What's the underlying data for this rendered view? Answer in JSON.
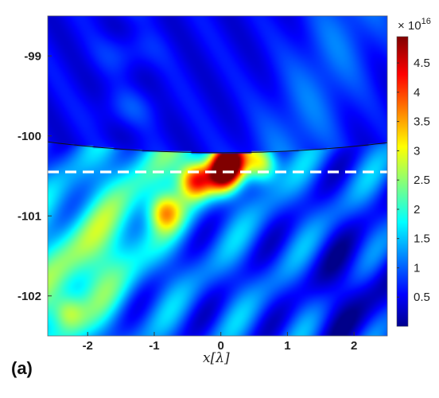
{
  "chart_data": {
    "type": "heatmap",
    "title": "",
    "xlabel": {
      "symbol": "x",
      "unit": "[λ]"
    },
    "ylabel": "",
    "xlim": [
      -2.6,
      2.5
    ],
    "ylim": [
      -102.5,
      -98.5
    ],
    "x_ticks": [
      -2,
      -1,
      0,
      1,
      2
    ],
    "y_ticks": [
      -99,
      -100,
      -101,
      -102
    ],
    "colorbar": {
      "range": [
        0,
        4.95
      ],
      "ticks": [
        "0.5",
        "1",
        "1.5",
        "2",
        "2.5",
        "3",
        "3.5",
        "4",
        "4.5"
      ],
      "scale_label": {
        "base": "× 10",
        "exponent": "16"
      },
      "colormap": "jet"
    },
    "interface_curve": {
      "style": "thin black arc",
      "description_points": [
        [
          -2.6,
          -100.08
        ],
        [
          0,
          -100.21
        ],
        [
          2.5,
          -100.08
        ]
      ]
    },
    "dashed_line": {
      "y": -100.45,
      "color": "#ffffff"
    },
    "hotspots": [
      {
        "x": 0.12,
        "y": -100.32,
        "value": 4.9
      },
      {
        "x": -0.38,
        "y": -100.55,
        "value": 4.0
      },
      {
        "x": 0.02,
        "y": -100.5,
        "value": 3.9
      },
      {
        "x": 0.62,
        "y": -100.35,
        "value": 3.6
      },
      {
        "x": -0.85,
        "y": -100.95,
        "value": 3.1
      },
      {
        "x": -2.3,
        "y": -102.2,
        "value": 2.5
      }
    ],
    "panel_label": "(a)"
  }
}
